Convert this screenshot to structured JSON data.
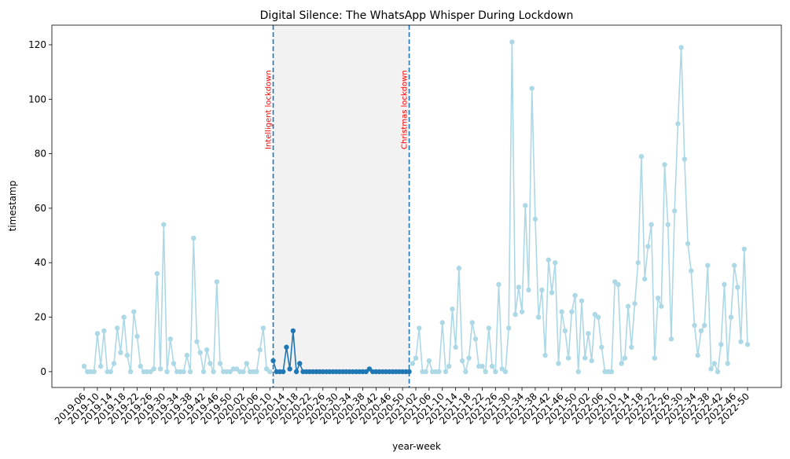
{
  "chart_data": {
    "type": "line",
    "title": "Digital Silence: The WhatsApp Whisper During Lockdown",
    "x_label": "year-week",
    "y_label": "timestamp",
    "categories": [
      "2019-06",
      null,
      null,
      null,
      "2019-10",
      null,
      null,
      null,
      "2019-14",
      null,
      null,
      null,
      "2019-18",
      null,
      null,
      null,
      "2019-22",
      null,
      null,
      null,
      "2019-26",
      null,
      null,
      null,
      "2019-30",
      null,
      null,
      null,
      "2019-34",
      null,
      null,
      null,
      "2019-38",
      null,
      null,
      null,
      "2019-42",
      null,
      null,
      null,
      "2019-46",
      null,
      null,
      null,
      "2019-50",
      null,
      null,
      null,
      "2020-02",
      null,
      null,
      null,
      "2020-06",
      null,
      null,
      null,
      "2020-10",
      null,
      null,
      null,
      "2020-14",
      null,
      null,
      null,
      "2020-18",
      null,
      null,
      null,
      "2020-22",
      null,
      null,
      null,
      "2020-26",
      null,
      null,
      null,
      "2020-30",
      null,
      null,
      null,
      "2020-34",
      null,
      null,
      null,
      "2020-38",
      null,
      null,
      null,
      "2020-42",
      null,
      null,
      null,
      "2020-46",
      null,
      null,
      null,
      "2020-50",
      null,
      null,
      null,
      "2021-02",
      null,
      null,
      null,
      "2021-06",
      null,
      null,
      null,
      "2021-10",
      null,
      null,
      null,
      "2021-14",
      null,
      null,
      null,
      "2021-18",
      null,
      null,
      null,
      "2021-22",
      null,
      null,
      null,
      "2021-26",
      null,
      null,
      null,
      "2021-30",
      null,
      null,
      null,
      "2021-34",
      null,
      null,
      null,
      "2021-38",
      null,
      null,
      null,
      "2021-42",
      null,
      null,
      null,
      "2021-46",
      null,
      null,
      null,
      "2021-50",
      null,
      null,
      null,
      "2022-02",
      null,
      null,
      null,
      "2022-06",
      null,
      null,
      null,
      "2022-10",
      null,
      null,
      null,
      "2022-14",
      null,
      null,
      null,
      "2022-18",
      null,
      null,
      null,
      "2022-22",
      null,
      null,
      null,
      "2022-26",
      null,
      null,
      null,
      "2022-30",
      null,
      null,
      null,
      "2022-34",
      null,
      null,
      null,
      "2022-38",
      null,
      null,
      null,
      "2022-42",
      null,
      null,
      null,
      "2022-46",
      null,
      null,
      null,
      "2022-50"
    ],
    "series": [
      {
        "color": "#add8e6",
        "values": [
          2,
          0,
          0,
          0,
          14,
          2,
          15,
          0,
          0,
          3,
          16,
          7,
          20,
          6,
          0,
          22,
          13,
          2,
          0,
          0,
          0,
          1,
          36,
          1,
          54,
          0,
          12,
          3,
          0,
          0,
          0,
          6,
          0,
          49,
          11,
          7,
          0,
          8,
          3,
          0,
          33,
          3,
          0,
          0,
          0,
          1,
          1,
          0,
          0,
          3,
          0,
          0,
          0,
          8,
          16,
          1,
          0,
          null,
          null,
          null,
          null,
          null,
          null,
          null,
          null,
          null,
          null,
          null,
          null,
          null,
          null,
          null,
          null,
          null,
          null,
          null,
          null,
          null,
          null,
          null,
          null,
          null,
          null,
          null,
          null,
          null,
          null,
          null,
          null,
          null,
          null,
          null,
          null,
          null,
          null,
          null,
          null,
          null,
          null,
          3,
          5,
          16,
          0,
          0,
          4,
          0,
          0,
          0,
          18,
          0,
          2,
          23,
          9,
          38,
          4,
          0,
          5,
          18,
          12,
          2,
          2,
          0,
          16,
          2,
          0,
          32,
          1,
          0,
          16,
          121,
          21,
          31,
          22,
          61,
          30,
          104,
          56,
          20,
          30,
          6,
          41,
          29,
          40,
          3,
          22,
          15,
          5,
          22,
          28,
          0,
          26,
          5,
          14,
          4,
          21,
          20,
          9,
          0,
          0,
          0,
          33,
          32,
          3,
          5,
          24,
          9,
          25,
          40,
          79,
          34,
          46,
          54,
          5,
          27,
          24,
          76,
          54,
          12,
          59,
          91,
          119,
          78,
          47,
          37,
          17,
          6,
          15,
          17,
          39,
          1,
          3,
          0,
          10,
          32,
          3,
          20,
          39,
          31,
          11,
          45,
          10
        ]
      },
      {
        "color": "#1f77b4",
        "values": [
          null,
          null,
          null,
          null,
          null,
          null,
          null,
          null,
          null,
          null,
          null,
          null,
          null,
          null,
          null,
          null,
          null,
          null,
          null,
          null,
          null,
          null,
          null,
          null,
          null,
          null,
          null,
          null,
          null,
          null,
          null,
          null,
          null,
          null,
          null,
          null,
          null,
          null,
          null,
          null,
          null,
          null,
          null,
          null,
          null,
          null,
          null,
          null,
          null,
          null,
          null,
          null,
          null,
          null,
          null,
          null,
          null,
          4,
          0,
          0,
          0,
          9,
          1,
          15,
          0,
          3,
          0,
          0,
          0,
          0,
          0,
          0,
          0,
          0,
          0,
          0,
          0,
          0,
          0,
          0,
          0,
          0,
          0,
          0,
          0,
          0,
          1,
          0,
          0,
          0,
          0,
          0,
          0,
          0,
          0,
          0,
          0,
          0,
          0,
          null,
          null,
          null,
          null,
          null,
          null,
          null,
          null,
          null,
          null,
          null,
          null,
          null,
          null,
          null,
          null,
          null,
          null,
          null,
          null,
          null,
          null,
          null,
          null,
          null,
          null,
          null,
          null,
          null,
          null,
          null,
          null,
          null,
          null,
          null,
          null,
          null,
          null,
          null,
          null,
          null,
          null,
          null,
          null,
          null,
          null,
          null,
          null,
          null,
          null,
          null,
          null,
          null,
          null,
          null,
          null,
          null,
          null,
          null,
          null,
          null,
          null,
          null,
          null,
          null,
          null,
          null,
          null,
          null,
          null,
          null,
          null,
          null,
          null,
          null,
          null,
          null,
          null,
          null,
          null,
          null,
          null,
          null,
          null,
          null,
          null,
          null,
          null,
          null,
          null,
          null,
          null,
          null,
          null,
          null,
          null,
          null,
          null,
          null,
          null,
          null,
          null
        ]
      }
    ],
    "lockdowns": [
      {
        "label": "Intelligent lockdown",
        "x": 57
      },
      {
        "label": "Christmas lockdown",
        "x": 98
      }
    ],
    "lockdown_color": "#1f77b4",
    "lockdown_label_color": "#ff0000",
    "shade_color": "#f2f2f2",
    "ylim": [
      -5.8,
      127.2
    ],
    "yticks": [
      0,
      20,
      40,
      60,
      80,
      100,
      120
    ]
  }
}
